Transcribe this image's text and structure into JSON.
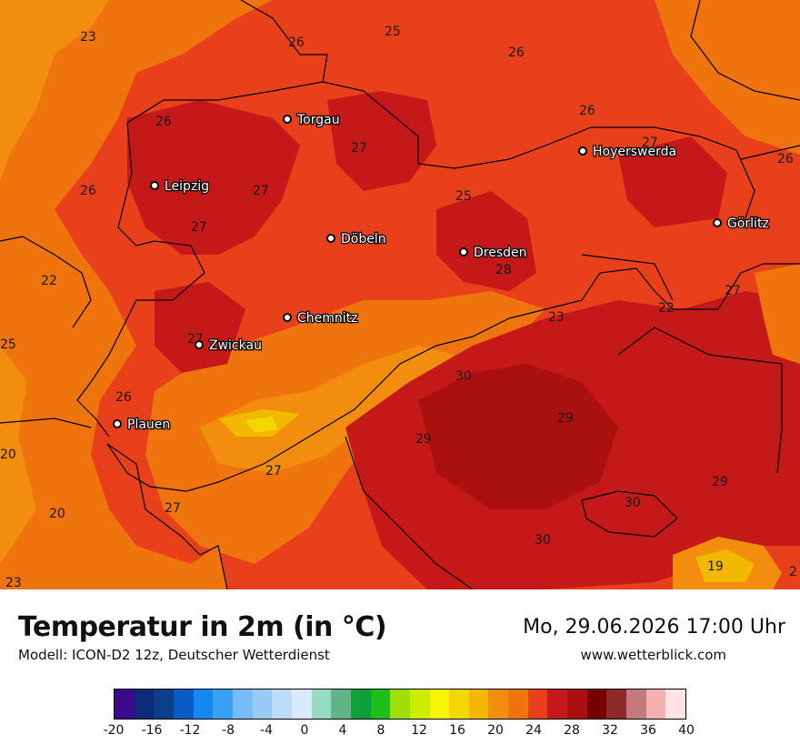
{
  "title": "Temperatur in 2m (in °C)",
  "subtitle": "Modell: ICON-D2 12z, Deutscher Wetterdienst",
  "datetime": "Mo, 29.06.2026 17:00 Uhr",
  "website": "www.wetterblick.com",
  "cities": [
    {
      "name": "Torgau"
    },
    {
      "name": "Leipzig"
    },
    {
      "name": "Hoyerswerda"
    },
    {
      "name": "Görlitz"
    },
    {
      "name": "Döbeln"
    },
    {
      "name": "Dresden"
    },
    {
      "name": "Chemnitz"
    },
    {
      "name": "Zwickau"
    },
    {
      "name": "Plauen"
    }
  ],
  "map_values": [
    "23",
    "26",
    "25",
    "26",
    "26",
    "27",
    "27",
    "26",
    "26",
    "27",
    "27",
    "25",
    "26",
    "28",
    "22",
    "27",
    "22",
    "23",
    "25",
    "27",
    "26",
    "30",
    "29",
    "29",
    "20",
    "27",
    "29",
    "20",
    "27",
    "30",
    "30",
    "19",
    "23",
    "2"
  ],
  "legend": {
    "colors": [
      "#3a0a8a",
      "#0d2a78",
      "#0c3f88",
      "#0a5cc4",
      "#1488f0",
      "#39a0f5",
      "#75bcf8",
      "#98cbf8",
      "#bcdcf8",
      "#d9eafc",
      "#96dcc0",
      "#63b38a",
      "#0fa03c",
      "#1fbf1a",
      "#a0de0a",
      "#ccec00",
      "#f6f600",
      "#f4d600",
      "#f3b800",
      "#f28d0d",
      "#f0740e",
      "#e8401a",
      "#c51818",
      "#aa1010",
      "#7a0000",
      "#8a2a2a",
      "#c47a7a",
      "#f7b0b0",
      "#fde3e3"
    ],
    "ticks": [
      "-20",
      "-16",
      "-12",
      "-8",
      "-4",
      "0",
      "4",
      "8",
      "12",
      "16",
      "20",
      "24",
      "28",
      "32",
      "36",
      "40"
    ]
  }
}
